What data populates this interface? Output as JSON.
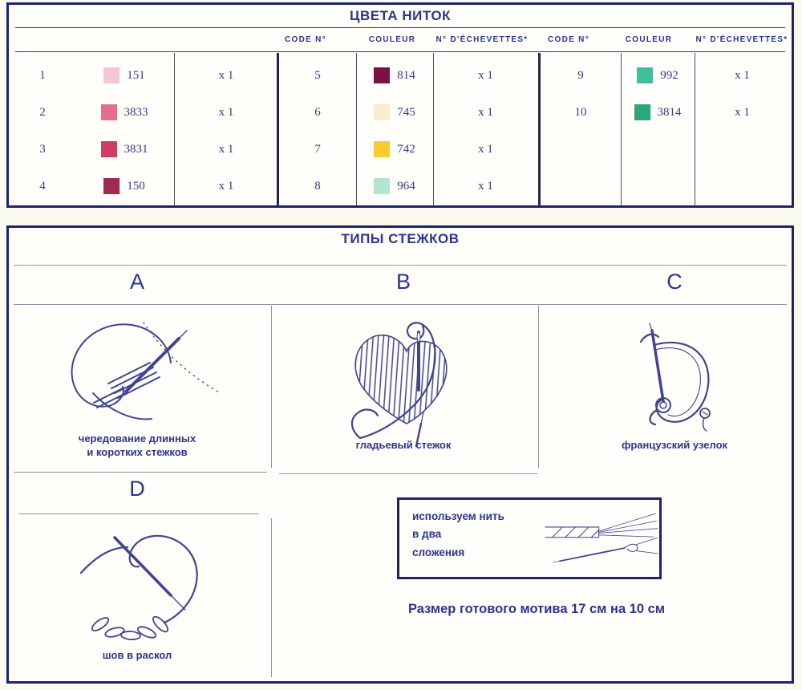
{
  "colors_section": {
    "title": "ЦВЕТА НИТОК",
    "header": {
      "code": "CODE N°",
      "color": "COULEUR",
      "skeins": "N° D'ÉCHEVETTES*"
    },
    "groups": [
      {
        "rows": [
          {
            "num": "1",
            "code": "151",
            "hex": "#f7c6d5",
            "count": "x 1"
          },
          {
            "num": "2",
            "code": "3833",
            "hex": "#e66e8c",
            "count": "x 1"
          },
          {
            "num": "3",
            "code": "3831",
            "hex": "#ce3d64",
            "count": "x 1"
          },
          {
            "num": "4",
            "code": "150",
            "hex": "#a02a50",
            "count": "x 1"
          }
        ]
      },
      {
        "rows": [
          {
            "num": "5",
            "code": "814",
            "hex": "#7d1044",
            "count": "x 1"
          },
          {
            "num": "6",
            "code": "745",
            "hex": "#f8eecb",
            "count": "x 1"
          },
          {
            "num": "7",
            "code": "742",
            "hex": "#f6cd31",
            "count": "x 1"
          },
          {
            "num": "8",
            "code": "964",
            "hex": "#b2e4ce",
            "count": "x 1"
          }
        ]
      },
      {
        "rows": [
          {
            "num": "9",
            "code": "992",
            "hex": "#41bf9b",
            "count": "x 1"
          },
          {
            "num": "10",
            "code": "3814",
            "hex": "#2aa77b",
            "count": "x 1"
          }
        ]
      }
    ]
  },
  "stitches_section": {
    "title": "ТИПЫ СТЕЖКОВ",
    "panels": [
      {
        "letter": "A",
        "caption_line1": "чередование длинных",
        "caption_line2": "и коротких стежков"
      },
      {
        "letter": "B",
        "caption_line1": "гладьевый стежок"
      },
      {
        "letter": "C",
        "caption_line1": "французский узелок"
      },
      {
        "letter": "D",
        "caption_line1": "шов в раскол"
      }
    ],
    "thread_note": {
      "line1": "используем нить",
      "line2": "в два",
      "line3": "сложения"
    },
    "size_note": "Размер готового мотива 17 см на 10 см"
  },
  "theme": {
    "border_navy": "#1b2370",
    "text_navy": "#2b3490",
    "drawing_blue": "#3f458f"
  }
}
